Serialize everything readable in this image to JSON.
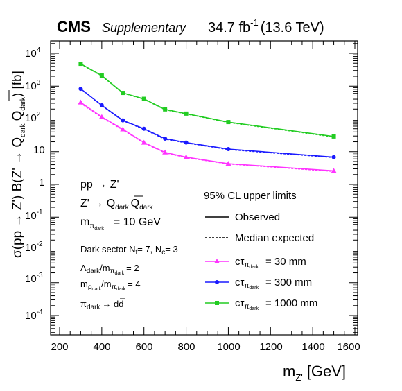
{
  "header": {
    "experiment": "CMS",
    "tag": "Supplementary",
    "lumi_value": "34.7 fb",
    "lumi_exp": "-1",
    "energy": "(13.6 TeV)"
  },
  "annotations": {
    "process_1": "pp → Z'",
    "process_2_prefix": "Z' → Q",
    "dark": "dark",
    "mass_prefix": "m",
    "mass_sub_1": "π",
    "mass_value": "= 10 GeV",
    "sector_text": "Dark sector N",
    "nf_sub": "f",
    "nf_value": "= 7,  N",
    "nc_sub": "c",
    "nc_value": "= 3",
    "lambda_prefix": "Λ",
    "lambda_mid": "/m",
    "lambda_value": "= 2",
    "rho_prefix": "m",
    "rho_sub": "ρ",
    "rho_value": "= 4",
    "decay_prefix": "π",
    "decay_arrow": "→ d",
    "decay_dbar": "d"
  },
  "legend": {
    "header": "95% CL upper limits",
    "observed": "Observed",
    "expected": "Median expected",
    "ctau_prefix": "cτ",
    "ctau_sub": "π",
    "ctau_dark": "dark",
    "entries": [
      "= 30 mm",
      "= 300 mm",
      "= 1000 mm"
    ]
  },
  "axes": {
    "xlabel": "m",
    "xlabel_sub": "Z'",
    "xlabel_unit": "[GeV]",
    "xticks": [
      "200",
      "400",
      "600",
      "800",
      "1000",
      "1200",
      "1400",
      "1600"
    ],
    "yticks_base": "10",
    "yticks_exp": [
      "-4",
      "-3",
      "-2",
      "-1",
      "",
      "",
      "2",
      "3",
      "4"
    ],
    "yticks_plain": [
      "1",
      "10"
    ],
    "ylabel": "σ(pp → Z') B(Z' → Q",
    "ylabel_dark": "dark",
    "ylabel_unit": ") [fb]"
  },
  "chart_data": {
    "type": "line",
    "x": [
      300,
      400,
      500,
      600,
      700,
      800,
      1000,
      1500
    ],
    "xlim": [
      200,
      1600
    ],
    "ylim": [
      3e-05,
      15000
    ],
    "yscale": "log",
    "grid": false,
    "legend_position": "bottom-right",
    "series": [
      {
        "name": "cτ = 30 mm",
        "color": "#ff33ff",
        "marker": "triangle",
        "observed": [
          320,
          115,
          48,
          19,
          9.5,
          6.8,
          4.3,
          2.6
        ],
        "expected": [
          300,
          110,
          46,
          18.5,
          9.2,
          6.6,
          4.2,
          2.5
        ]
      },
      {
        "name": "cτ = 300 mm",
        "color": "#1a1aff",
        "marker": "circle",
        "observed": [
          830,
          260,
          90,
          50,
          25,
          19,
          12,
          6.8
        ],
        "expected": [
          820,
          255,
          88,
          48,
          24,
          18.5,
          11.6,
          6.6
        ]
      },
      {
        "name": "cτ = 1000 mm",
        "color": "#22cc22",
        "marker": "square",
        "observed": [
          4800,
          2100,
          620,
          410,
          195,
          145,
          80,
          29
        ],
        "expected": [
          4700,
          2050,
          610,
          400,
          190,
          142,
          78,
          28
        ]
      }
    ]
  }
}
